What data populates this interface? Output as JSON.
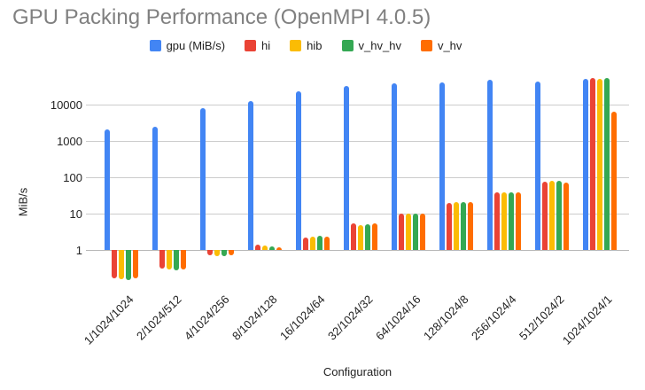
{
  "title": "GPU Packing Performance (OpenMPI 4.0.5)",
  "chart_data": {
    "type": "bar",
    "title": "GPU Packing Performance (OpenMPI 4.0.5)",
    "xlabel": "Configuration",
    "ylabel": "MiB/s",
    "y_scale": "log",
    "y_ticks": [
      1,
      10,
      100,
      1000,
      10000
    ],
    "ylim": [
      0.1,
      100000
    ],
    "grid": true,
    "legend_position": "top",
    "categories": [
      "1/1024/1024",
      "2/1024/512",
      "4/1024/256",
      "8/1024/128",
      "16/1024/64",
      "32/1024/32",
      "64/1024/16",
      "128/1024/8",
      "256/1024/4",
      "512/1024/2",
      "1024/1024/1"
    ],
    "series": [
      {
        "name": "gpu (MiB/s)",
        "color": "#4285F4",
        "values": [
          2100,
          2500,
          8100,
          12300,
          23000,
          32000,
          39000,
          41500,
          47000,
          43000,
          52000
        ]
      },
      {
        "name": "hi",
        "color": "#EA4335",
        "values": [
          0.17,
          0.3,
          0.7,
          1.4,
          2.2,
          5.3,
          9.8,
          20,
          38,
          75,
          55000
        ]
      },
      {
        "name": "hib",
        "color": "#FBBC04",
        "values": [
          0.16,
          0.29,
          0.69,
          1.3,
          2.3,
          4.7,
          9.9,
          21,
          39,
          82,
          51000
        ]
      },
      {
        "name": "v_hv_hv",
        "color": "#34A853",
        "values": [
          0.15,
          0.28,
          0.66,
          1.25,
          2.4,
          5.0,
          10.2,
          21,
          39,
          80,
          54000
        ]
      },
      {
        "name": "v_hv",
        "color": "#FF6D01",
        "values": [
          0.17,
          0.29,
          0.7,
          1.2,
          2.3,
          5.5,
          10.0,
          20.5,
          38.5,
          72,
          6500
        ]
      }
    ]
  }
}
